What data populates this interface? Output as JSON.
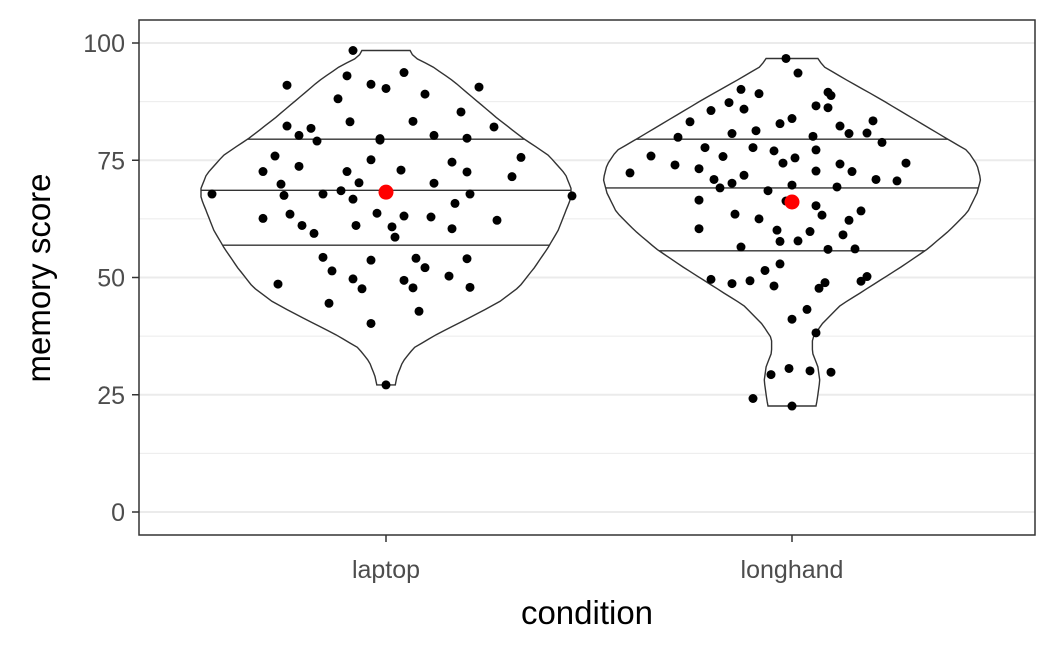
{
  "chart_data": {
    "type": "violin",
    "title": "",
    "xlabel": "condition",
    "ylabel": "memory score",
    "ylim": [
      -5,
      105
    ],
    "y_ticks": [
      0,
      25,
      50,
      75,
      100
    ],
    "categories": [
      "laptop",
      "longhand"
    ],
    "grid": "horizontal",
    "legend": "none",
    "colors": {
      "points": "#000000",
      "mean": "#ff0000",
      "outline": "#333333",
      "grid": "#ebebeb",
      "panel_border": "#333333",
      "tick_text": "#4d4d4d"
    },
    "groups": [
      {
        "name": "laptop",
        "quantiles": [
          56.9,
          68.6,
          79.5
        ],
        "mean": 68.2,
        "range": [
          27.1,
          98.4
        ],
        "profile": [
          [
            27.1,
            0.05
          ],
          [
            29,
            0.06
          ],
          [
            32,
            0.09
          ],
          [
            35,
            0.15
          ],
          [
            38,
            0.28
          ],
          [
            42,
            0.48
          ],
          [
            45,
            0.62
          ],
          [
            48,
            0.72
          ],
          [
            52,
            0.8
          ],
          [
            56,
            0.87
          ],
          [
            60,
            0.93
          ],
          [
            64,
            0.97
          ],
          [
            67,
            1.0
          ],
          [
            69,
            1.0
          ],
          [
            72,
            0.97
          ],
          [
            76,
            0.88
          ],
          [
            80,
            0.73
          ],
          [
            84,
            0.6
          ],
          [
            88,
            0.48
          ],
          [
            92,
            0.36
          ],
          [
            95,
            0.25
          ],
          [
            97,
            0.15
          ],
          [
            98.4,
            0.13
          ]
        ],
        "points": [
          [
            -0.11,
            98.4
          ],
          [
            -0.05,
            91.2
          ],
          [
            0.0,
            90.3
          ],
          [
            0.06,
            93.7
          ],
          [
            -0.13,
            93.0
          ],
          [
            -0.33,
            91.0
          ],
          [
            0.31,
            90.6
          ],
          [
            0.13,
            89.1
          ],
          [
            -0.16,
            88.1
          ],
          [
            0.25,
            85.3
          ],
          [
            -0.12,
            83.2
          ],
          [
            0.09,
            83.3
          ],
          [
            -0.33,
            82.3
          ],
          [
            -0.25,
            81.8
          ],
          [
            -0.29,
            80.3
          ],
          [
            0.16,
            80.3
          ],
          [
            -0.02,
            79.6
          ],
          [
            0.36,
            82.1
          ],
          [
            0.27,
            79.7
          ],
          [
            -0.02,
            79.3
          ],
          [
            -0.23,
            79.1
          ],
          [
            -0.37,
            75.9
          ],
          [
            -0.05,
            75.1
          ],
          [
            0.22,
            74.6
          ],
          [
            -0.29,
            73.7
          ],
          [
            0.45,
            75.6
          ],
          [
            -0.13,
            72.6
          ],
          [
            0.05,
            72.9
          ],
          [
            -0.41,
            72.6
          ],
          [
            0.27,
            72.5
          ],
          [
            0.42,
            71.5
          ],
          [
            0.16,
            70.1
          ],
          [
            -0.09,
            70.2
          ],
          [
            -0.35,
            69.9
          ],
          [
            -0.21,
            67.8
          ],
          [
            -0.15,
            68.5
          ],
          [
            0.28,
            67.8
          ],
          [
            -0.34,
            67.5
          ],
          [
            -0.58,
            67.8
          ],
          [
            0.62,
            67.4
          ],
          [
            0.23,
            65.8
          ],
          [
            -0.11,
            66.7
          ],
          [
            -0.03,
            63.7
          ],
          [
            0.06,
            63.1
          ],
          [
            0.37,
            62.2
          ],
          [
            0.15,
            62.9
          ],
          [
            -0.32,
            63.5
          ],
          [
            -0.41,
            62.6
          ],
          [
            -0.1,
            61.1
          ],
          [
            -0.28,
            61.1
          ],
          [
            -0.24,
            59.4
          ],
          [
            0.22,
            60.4
          ],
          [
            0.03,
            58.6
          ],
          [
            0.02,
            60.8
          ],
          [
            -0.21,
            54.3
          ],
          [
            -0.18,
            51.4
          ],
          [
            0.1,
            54.1
          ],
          [
            -0.05,
            53.7
          ],
          [
            0.27,
            54.0
          ],
          [
            -0.36,
            48.6
          ],
          [
            -0.11,
            49.7
          ],
          [
            0.06,
            49.4
          ],
          [
            0.21,
            50.3
          ],
          [
            0.28,
            47.9
          ],
          [
            0.13,
            52.1
          ],
          [
            -0.08,
            47.6
          ],
          [
            0.09,
            47.8
          ],
          [
            -0.19,
            44.5
          ],
          [
            0.11,
            42.8
          ],
          [
            -0.05,
            40.2
          ],
          [
            0.0,
            27.1
          ]
        ]
      },
      {
        "name": "longhand",
        "quantiles": [
          55.7,
          69.1,
          79.5
        ],
        "mean": 66.1,
        "range": [
          22.6,
          96.7
        ],
        "profile": [
          [
            22.6,
            0.13
          ],
          [
            25,
            0.14
          ],
          [
            28,
            0.15
          ],
          [
            31,
            0.14
          ],
          [
            34,
            0.11
          ],
          [
            37,
            0.11
          ],
          [
            40,
            0.16
          ],
          [
            44,
            0.26
          ],
          [
            48,
            0.42
          ],
          [
            52,
            0.58
          ],
          [
            56,
            0.73
          ],
          [
            60,
            0.85
          ],
          [
            64,
            0.95
          ],
          [
            68,
            1.0
          ],
          [
            71,
            1.02
          ],
          [
            74,
            1.0
          ],
          [
            77,
            0.95
          ],
          [
            80,
            0.82
          ],
          [
            84,
            0.65
          ],
          [
            88,
            0.48
          ],
          [
            92,
            0.3
          ],
          [
            95,
            0.17
          ],
          [
            96.7,
            0.14
          ]
        ],
        "points": [
          [
            -0.02,
            96.7
          ],
          [
            0.02,
            93.6
          ],
          [
            -0.17,
            90.1
          ],
          [
            -0.11,
            89.2
          ],
          [
            0.12,
            89.5
          ],
          [
            0.13,
            88.8
          ],
          [
            -0.21,
            87.3
          ],
          [
            -0.16,
            85.9
          ],
          [
            0.08,
            86.6
          ],
          [
            0.12,
            86.2
          ],
          [
            -0.27,
            85.6
          ],
          [
            -0.34,
            83.2
          ],
          [
            0.0,
            83.9
          ],
          [
            -0.04,
            82.8
          ],
          [
            0.27,
            83.4
          ],
          [
            -0.12,
            81.3
          ],
          [
            0.16,
            82.3
          ],
          [
            -0.2,
            80.7
          ],
          [
            0.19,
            80.7
          ],
          [
            0.07,
            80.1
          ],
          [
            -0.38,
            79.9
          ],
          [
            0.25,
            80.8
          ],
          [
            0.3,
            78.8
          ],
          [
            -0.29,
            77.7
          ],
          [
            -0.13,
            77.7
          ],
          [
            -0.06,
            77.0
          ],
          [
            0.08,
            77.2
          ],
          [
            -0.23,
            75.8
          ],
          [
            0.01,
            75.5
          ],
          [
            -0.47,
            75.9
          ],
          [
            -0.03,
            74.4
          ],
          [
            0.16,
            74.2
          ],
          [
            0.38,
            74.4
          ],
          [
            -0.39,
            74.0
          ],
          [
            -0.31,
            73.2
          ],
          [
            0.08,
            72.7
          ],
          [
            -0.54,
            72.3
          ],
          [
            0.2,
            72.6
          ],
          [
            -0.16,
            71.8
          ],
          [
            -0.26,
            70.9
          ],
          [
            0.28,
            70.9
          ],
          [
            -0.2,
            70.1
          ],
          [
            0.0,
            69.7
          ],
          [
            0.15,
            69.3
          ],
          [
            0.35,
            70.6
          ],
          [
            -0.24,
            69.1
          ],
          [
            -0.08,
            68.5
          ],
          [
            -0.31,
            66.5
          ],
          [
            -0.02,
            66.3
          ],
          [
            0.08,
            65.3
          ],
          [
            0.23,
            64.2
          ],
          [
            -0.19,
            63.5
          ],
          [
            0.1,
            63.3
          ],
          [
            0.19,
            62.2
          ],
          [
            -0.11,
            62.5
          ],
          [
            -0.31,
            60.4
          ],
          [
            -0.05,
            60.1
          ],
          [
            0.06,
            59.8
          ],
          [
            0.17,
            59.1
          ],
          [
            -0.04,
            57.7
          ],
          [
            0.02,
            57.8
          ],
          [
            0.21,
            56.1
          ],
          [
            -0.17,
            56.5
          ],
          [
            0.12,
            56.0
          ],
          [
            -0.04,
            52.9
          ],
          [
            -0.09,
            51.5
          ],
          [
            0.23,
            49.2
          ],
          [
            0.25,
            50.2
          ],
          [
            -0.27,
            49.6
          ],
          [
            -0.14,
            49.3
          ],
          [
            -0.2,
            48.7
          ],
          [
            0.11,
            48.9
          ],
          [
            -0.06,
            48.2
          ],
          [
            0.09,
            47.7
          ],
          [
            0.05,
            43.2
          ],
          [
            0.0,
            41.1
          ],
          [
            0.08,
            38.2
          ],
          [
            -0.01,
            30.6
          ],
          [
            0.06,
            30.1
          ],
          [
            0.13,
            29.8
          ],
          [
            -0.07,
            29.3
          ],
          [
            -0.13,
            24.2
          ],
          [
            0.0,
            22.6
          ]
        ]
      }
    ]
  }
}
